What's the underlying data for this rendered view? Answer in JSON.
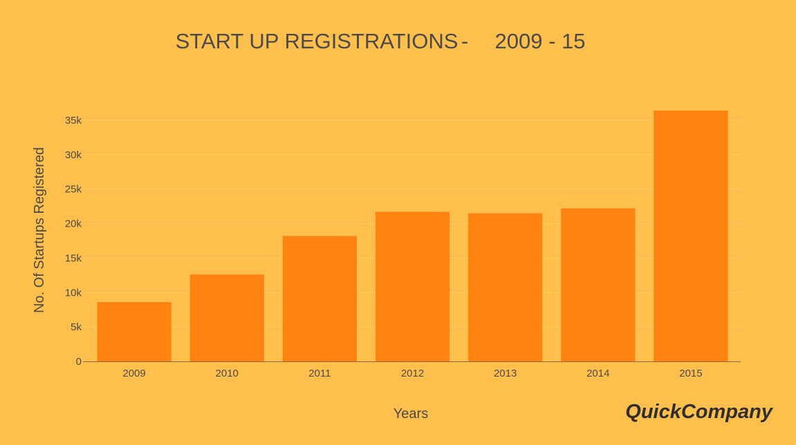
{
  "chart_data": {
    "type": "bar",
    "title_parts": [
      "START UP REGISTRATIONS",
      "-",
      "2009 - 15"
    ],
    "xlabel": "Years",
    "ylabel": "No. Of Startups Registered",
    "categories": [
      "2009",
      "2010",
      "2011",
      "2012",
      "2013",
      "2014",
      "2015"
    ],
    "values": [
      8600,
      12600,
      18200,
      21700,
      21500,
      22200,
      36400
    ],
    "ylim": [
      0,
      37000
    ],
    "yticks": [
      0,
      5000,
      10000,
      15000,
      20000,
      25000,
      30000,
      35000
    ],
    "ytick_labels": [
      "0",
      "5k",
      "10k",
      "15k",
      "20k",
      "25k",
      "30k",
      "35k"
    ],
    "grid": true,
    "colors": {
      "background": "#ffbf4d",
      "bar": "#ff8311",
      "gridline": "#ffcd5e",
      "axis": "#8a6a3a",
      "text": "#4a4a4a"
    }
  },
  "brand": {
    "logo_text": "QuickCompany"
  }
}
